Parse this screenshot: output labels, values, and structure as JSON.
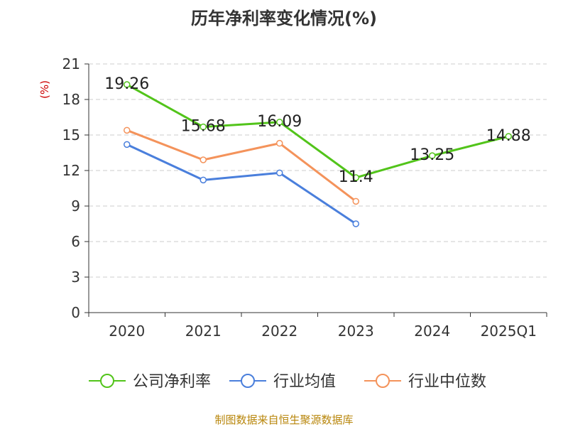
{
  "chart_data": {
    "type": "line",
    "title": "历年净利率变化情况(%)",
    "ylabel": "(%)",
    "xlabel": "",
    "categories": [
      "2020",
      "2021",
      "2022",
      "2023",
      "2024",
      "2025Q1"
    ],
    "ylim": [
      0,
      21
    ],
    "yticks": [
      0,
      3,
      6,
      9,
      12,
      15,
      18,
      21
    ],
    "grid": true,
    "legend_position": "bottom",
    "series": [
      {
        "name": "公司净利率",
        "color": "#52c41a",
        "values": [
          19.26,
          15.68,
          16.09,
          11.4,
          13.25,
          14.88
        ],
        "show_labels": true
      },
      {
        "name": "行业均值",
        "color": "#4a7fdc",
        "values": [
          14.2,
          11.2,
          11.8,
          7.5,
          null,
          null
        ],
        "show_labels": false
      },
      {
        "name": "行业中位数",
        "color": "#f4935b",
        "values": [
          15.4,
          12.9,
          14.3,
          9.4,
          null,
          null
        ],
        "show_labels": false
      }
    ]
  },
  "source_text": "制图数据来自恒生聚源数据库",
  "colors": {
    "axis": "#333333",
    "grid": "#cccccc",
    "ylabel": "#cc0000",
    "source": "#b8860b"
  }
}
